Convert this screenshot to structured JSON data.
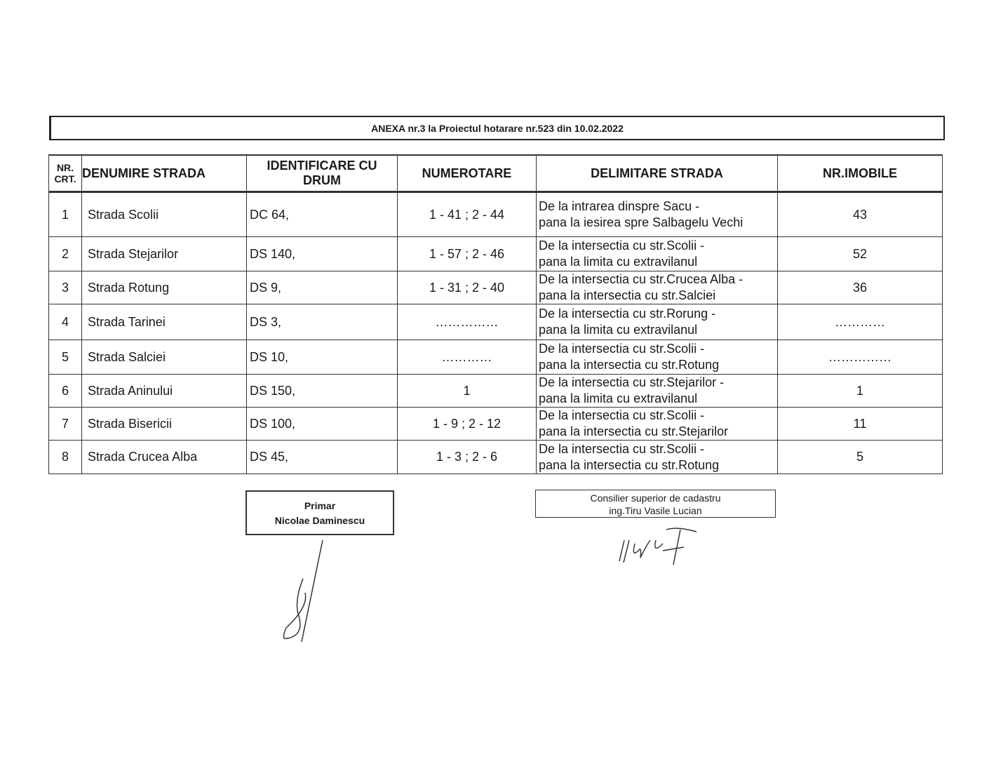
{
  "title": "ANEXA nr.3 la Proiectul hotarare nr.523 din 10.02.2022",
  "table": {
    "headers": {
      "nr": "NR.",
      "crt": "CRT.",
      "name": "DENUMIRE STRADA",
      "drum1": "IDENTIFICARE CU",
      "drum2": "DRUM",
      "num": "NUMEROTARE",
      "delim": "DELIMITARE STRADA",
      "imob": "NR.IMOBILE"
    },
    "rows": [
      {
        "nr": "1",
        "name": "Strada Scolii",
        "drum": "DC 64,",
        "num": "1 - 41 ; 2 - 44",
        "d1": "De la intrarea dinspre Sacu -",
        "d2": "pana la iesirea spre Salbagelu Vechi",
        "imob": "43"
      },
      {
        "nr": "2",
        "name": "Strada Stejarilor",
        "drum": "DS 140,",
        "num": "1 - 57 ; 2 - 46",
        "d1": "De la intersectia cu str.Scolii -",
        "d2": "pana la limita cu extravilanul",
        "imob": "52"
      },
      {
        "nr": "3",
        "name": "Strada Rotung",
        "drum": "DS 9,",
        "num": "1 - 31 ; 2 - 40",
        "d1": "De la intersectia cu str.Crucea Alba -",
        "d2": "pana la intersectia cu str.Salciei",
        "imob": "36"
      },
      {
        "nr": "4",
        "name": "Strada Tarinei",
        "drum": "DS 3,",
        "num": "……………",
        "d1": "De la intersectia cu str.Rorung -",
        "d2": "pana la limita cu extravilanul",
        "imob": "…………"
      },
      {
        "nr": "5",
        "name": "Strada Salciei",
        "drum": "DS 10,",
        "num": "…………",
        "d1": "De la intersectia cu str.Scolii -",
        "d2": "pana la intersectia cu str.Rotung",
        "imob": "……………"
      },
      {
        "nr": "6",
        "name": "Strada Aninului",
        "drum": "DS 150,",
        "num": "1",
        "d1": "De la intersectia cu str.Stejarilor -",
        "d2": "pana la limita cu extravilanul",
        "imob": "1"
      },
      {
        "nr": "7",
        "name": "Strada Bisericii",
        "drum": "DS 100,",
        "num": "1 - 9 ; 2 - 12",
        "d1": "De la intersectia cu str.Scolii -",
        "d2": "pana la intersectia cu str.Stejarilor",
        "imob": "11"
      },
      {
        "nr": "8",
        "name": "Strada Crucea Alba",
        "drum": "DS 45,",
        "num": "1 - 3 ; 2 - 6",
        "d1": "De la intersectia cu str.Scolii -",
        "d2": "pana la intersectia cu str.Rotung",
        "imob": "5"
      }
    ]
  },
  "signatures": {
    "primar": {
      "role": "Primar",
      "name": "Nicolae Daminescu"
    },
    "consilier": {
      "role": "Consilier superior de cadastru",
      "name": "ing.Tiru Vasile Lucian"
    }
  }
}
